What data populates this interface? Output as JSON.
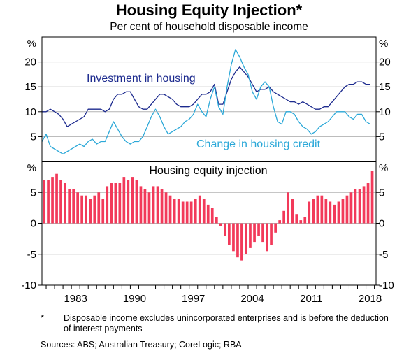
{
  "title": "Housing Equity Injection*",
  "subtitle": "Per cent of household disposable income",
  "footnote_marker": "*",
  "footnote": "Disposable income excludes unincorporated enterprises and is before the deduction of interest payments",
  "sources": "Sources:   ABS; Australian Treasury; CoreLogic; RBA",
  "colors": {
    "investment": "#1c2a8e",
    "credit": "#2ba8d8",
    "injection": "#f23a5a",
    "axis": "#000000",
    "grid": "#b3b3b3"
  },
  "chart_data": [
    {
      "type": "line",
      "panel": "top",
      "title": "",
      "unit_label": "%",
      "ylim": [
        0,
        25
      ],
      "yticks": [
        5,
        10,
        15,
        20
      ],
      "xlim": [
        1979.5,
        2019.2
      ],
      "xticks": [
        1983,
        1990,
        1997,
        2004,
        2011,
        2018
      ],
      "grid": true,
      "series": [
        {
          "name": "Investment in housing",
          "color": "investment",
          "x": [
            1979.5,
            1980,
            1980.5,
            1981,
            1981.5,
            1982,
            1982.5,
            1983,
            1983.5,
            1984,
            1984.5,
            1985,
            1985.5,
            1986,
            1986.5,
            1987,
            1987.5,
            1988,
            1988.5,
            1989,
            1989.5,
            1990,
            1990.5,
            1991,
            1991.5,
            1992,
            1992.5,
            1993,
            1993.5,
            1994,
            1994.5,
            1995,
            1995.5,
            1996,
            1996.5,
            1997,
            1997.5,
            1998,
            1998.5,
            1999,
            1999.5,
            2000,
            2000.5,
            2001,
            2001.5,
            2002,
            2002.5,
            2003,
            2003.5,
            2004,
            2004.5,
            2005,
            2005.5,
            2006,
            2006.5,
            2007,
            2007.5,
            2008,
            2008.5,
            2009,
            2009.5,
            2010,
            2010.5,
            2011,
            2011.5,
            2012,
            2012.5,
            2013,
            2013.5,
            2014,
            2014.5,
            2015,
            2015.5,
            2016,
            2016.5,
            2017,
            2017.5,
            2018,
            2018.5
          ],
          "values": [
            10,
            10,
            10.5,
            10,
            9.5,
            8.5,
            7,
            7.5,
            8,
            8.5,
            9,
            10.5,
            10.5,
            10.5,
            10.5,
            10,
            10.5,
            12.5,
            13.5,
            13.5,
            14,
            14,
            12.5,
            11,
            10.5,
            10.5,
            11.5,
            12.5,
            13.5,
            13.5,
            13,
            12.5,
            11.5,
            11,
            11,
            11,
            11.5,
            12.5,
            13.5,
            13.5,
            14,
            15.5,
            11.5,
            11.5,
            14,
            16.5,
            18,
            19,
            18,
            17,
            15.5,
            14,
            14.5,
            14.5,
            15,
            14,
            13.5,
            13,
            12.5,
            12,
            12,
            11.5,
            12,
            11.5,
            11,
            10.5,
            10.5,
            11,
            11,
            12,
            13,
            14,
            15,
            15.5,
            15.5,
            16,
            16,
            15.5,
            15.5
          ]
        },
        {
          "name": "Change in housing credit",
          "color": "credit",
          "x": [
            1979.5,
            1980,
            1980.5,
            1981,
            1981.5,
            1982,
            1982.5,
            1983,
            1983.5,
            1984,
            1984.5,
            1985,
            1985.5,
            1986,
            1986.5,
            1987,
            1987.5,
            1988,
            1988.5,
            1989,
            1989.5,
            1990,
            1990.5,
            1991,
            1991.5,
            1992,
            1992.5,
            1993,
            1993.5,
            1994,
            1994.5,
            1995,
            1995.5,
            1996,
            1996.5,
            1997,
            1997.5,
            1998,
            1998.5,
            1999,
            1999.5,
            2000,
            2000.5,
            2001,
            2001.5,
            2002,
            2002.5,
            2003,
            2003.5,
            2004,
            2004.5,
            2005,
            2005.5,
            2006,
            2006.5,
            2007,
            2007.5,
            2008,
            2008.5,
            2009,
            2009.5,
            2010,
            2010.5,
            2011,
            2011.5,
            2012,
            2012.5,
            2013,
            2013.5,
            2014,
            2014.5,
            2015,
            2015.5,
            2016,
            2016.5,
            2017,
            2017.5,
            2018,
            2018.5
          ],
          "values": [
            4,
            5.5,
            3,
            2.5,
            2,
            1.5,
            2,
            2.5,
            3,
            3.5,
            3,
            4,
            4.5,
            3.5,
            4,
            4,
            6,
            8,
            6.5,
            5,
            4,
            3.5,
            4,
            4,
            5,
            7,
            9,
            10.5,
            9,
            7,
            5.5,
            6,
            6.5,
            7,
            8,
            8.5,
            9.5,
            11.5,
            10,
            9,
            12.5,
            15,
            11,
            9.5,
            15,
            19.5,
            22.5,
            21,
            19,
            17.5,
            14,
            12.5,
            15,
            16,
            15,
            11,
            8,
            7.5,
            10,
            10,
            9.5,
            8,
            7,
            6.5,
            5.5,
            6,
            7,
            7.5,
            8,
            9,
            10,
            10,
            10,
            9,
            8.5,
            9.5,
            9.5,
            8,
            7.5
          ]
        }
      ]
    },
    {
      "type": "bar",
      "panel": "bottom",
      "title": "Housing equity injection",
      "unit_label": "%",
      "ylim": [
        -10,
        10
      ],
      "yticks": [
        -10,
        -5,
        0,
        5
      ],
      "xlim": [
        1979.5,
        2019.2
      ],
      "xticks": [
        1983,
        1990,
        1997,
        2004,
        2011,
        2018
      ],
      "grid": true,
      "series": [
        {
          "name": "Housing equity injection",
          "color": "injection",
          "x": [
            1979.75,
            1980.25,
            1980.75,
            1981.25,
            1981.75,
            1982.25,
            1982.75,
            1983.25,
            1983.75,
            1984.25,
            1984.75,
            1985.25,
            1985.75,
            1986.25,
            1986.75,
            1987.25,
            1987.75,
            1988.25,
            1988.75,
            1989.25,
            1989.75,
            1990.25,
            1990.75,
            1991.25,
            1991.75,
            1992.25,
            1992.75,
            1993.25,
            1993.75,
            1994.25,
            1994.75,
            1995.25,
            1995.75,
            1996.25,
            1996.75,
            1997.25,
            1997.75,
            1998.25,
            1998.75,
            1999.25,
            1999.75,
            2000.25,
            2000.75,
            2001.25,
            2001.75,
            2002.25,
            2002.75,
            2003.25,
            2003.75,
            2004.25,
            2004.75,
            2005.25,
            2005.75,
            2006.25,
            2006.75,
            2007.25,
            2007.75,
            2008.25,
            2008.75,
            2009.25,
            2009.75,
            2010.25,
            2010.75,
            2011.25,
            2011.75,
            2012.25,
            2012.75,
            2013.25,
            2013.75,
            2014.25,
            2014.75,
            2015.25,
            2015.75,
            2016.25,
            2016.75,
            2017.25,
            2017.75,
            2018.25,
            2018.75
          ],
          "values": [
            7,
            7,
            7.5,
            8,
            7,
            6.5,
            5.5,
            5.5,
            5,
            4.5,
            4.5,
            4,
            4.5,
            5,
            4,
            6,
            6.5,
            6.5,
            6.5,
            7.5,
            7,
            7.5,
            7,
            6,
            5.5,
            5,
            6,
            6,
            5.5,
            5,
            4.5,
            4,
            4,
            3.5,
            3.5,
            3.5,
            4,
            4.5,
            4,
            3,
            2.5,
            1,
            -0.5,
            -2,
            -3.5,
            -4.5,
            -5.5,
            -6,
            -5,
            -4,
            -3,
            -2,
            -3,
            -4.5,
            -3.5,
            -1.5,
            0.5,
            2,
            5,
            4,
            1.5,
            0.5,
            1,
            3.5,
            4,
            4.5,
            4.5,
            4,
            3.5,
            3,
            3.5,
            4,
            4.5,
            5,
            5.5,
            5.5,
            6,
            6.5,
            8.5
          ]
        }
      ]
    }
  ]
}
